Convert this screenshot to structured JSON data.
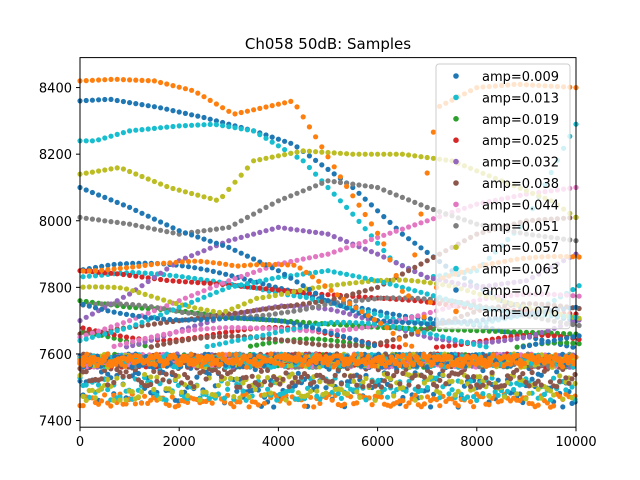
{
  "chart_data": {
    "type": "scatter",
    "title": "Ch058 50dB: Samples",
    "xlabel": "",
    "ylabel": "",
    "xlim": [
      0,
      10000
    ],
    "ylim": [
      7380,
      8490
    ],
    "x_ticks": [
      0,
      2000,
      4000,
      6000,
      8000,
      10000
    ],
    "y_ticks": [
      7400,
      7600,
      7800,
      8000,
      8200,
      8400
    ],
    "legend_position": "top-right",
    "grid": false,
    "series": [
      {
        "name": "amp=0.009",
        "color": "#1f77b4",
        "period": 6500,
        "anchors": [
          [
            0,
            8360
          ],
          [
            600,
            8365
          ],
          [
            1600,
            8340
          ],
          [
            2500,
            8310
          ],
          [
            3500,
            8270
          ],
          [
            4300,
            8230
          ],
          [
            5500,
            8100
          ],
          [
            6500,
            7960
          ],
          [
            7500,
            7850
          ],
          [
            8500,
            7760
          ],
          [
            9300,
            7720
          ],
          [
            10000,
            7700
          ]
        ]
      },
      {
        "name": "amp=0.013",
        "color": "#17becf",
        "period": 6500,
        "anchors": [
          [
            300,
            8240
          ],
          [
            1000,
            8270
          ],
          [
            2000,
            8285
          ],
          [
            2700,
            8290
          ],
          [
            3500,
            8270
          ],
          [
            4500,
            8180
          ],
          [
            5500,
            8020
          ],
          [
            6300,
            7880
          ],
          [
            7000,
            7830
          ],
          [
            8000,
            7850
          ],
          [
            9000,
            8000
          ],
          [
            10000,
            8290
          ]
        ]
      },
      {
        "name": "amp=0.019",
        "color": "#2ca02c",
        "period": 5000,
        "anchors": [
          [
            0,
            7760
          ],
          [
            1000,
            7740
          ],
          [
            2000,
            7730
          ],
          [
            3000,
            7710
          ],
          [
            4000,
            7700
          ],
          [
            5000,
            7690
          ],
          [
            6000,
            7680
          ],
          [
            7000,
            7675
          ],
          [
            8000,
            7670
          ],
          [
            9000,
            7665
          ],
          [
            10000,
            7660
          ]
        ]
      },
      {
        "name": "amp=0.025",
        "color": "#d62728",
        "period": 5200,
        "anchors": [
          [
            0,
            7850
          ],
          [
            800,
            7840
          ],
          [
            1800,
            7820
          ],
          [
            2800,
            7810
          ],
          [
            3800,
            7795
          ],
          [
            4800,
            7780
          ],
          [
            5800,
            7770
          ],
          [
            6800,
            7760
          ],
          [
            7800,
            7740
          ],
          [
            8800,
            7730
          ],
          [
            10000,
            7720
          ]
        ]
      },
      {
        "name": "amp=0.032",
        "color": "#9467bd",
        "period": 7000,
        "anchors": [
          [
            0,
            7700
          ],
          [
            1000,
            7780
          ],
          [
            2000,
            7880
          ],
          [
            3000,
            7940
          ],
          [
            4000,
            7980
          ],
          [
            5000,
            7960
          ],
          [
            6000,
            7900
          ],
          [
            7000,
            7830
          ],
          [
            8000,
            7800
          ],
          [
            9000,
            7820
          ],
          [
            10000,
            7900
          ]
        ]
      },
      {
        "name": "amp=0.038",
        "color": "#8c564b",
        "period": 6000,
        "anchors": [
          [
            0,
            7660
          ],
          [
            1000,
            7680
          ],
          [
            2000,
            7700
          ],
          [
            3000,
            7720
          ],
          [
            4000,
            7740
          ],
          [
            5000,
            7760
          ],
          [
            6000,
            7800
          ],
          [
            7000,
            7880
          ],
          [
            8000,
            7960
          ],
          [
            9000,
            8000
          ],
          [
            10000,
            8010
          ]
        ]
      },
      {
        "name": "amp=0.044",
        "color": "#e377c2",
        "period": 6800,
        "anchors": [
          [
            0,
            7650
          ],
          [
            1000,
            7700
          ],
          [
            2000,
            7760
          ],
          [
            3000,
            7820
          ],
          [
            4000,
            7870
          ],
          [
            5000,
            7900
          ],
          [
            6000,
            7950
          ],
          [
            7000,
            8000
          ],
          [
            8000,
            8050
          ],
          [
            9000,
            8080
          ],
          [
            10000,
            8100
          ]
        ]
      },
      {
        "name": "amp=0.051",
        "color": "#7f7f7f",
        "period": 6500,
        "anchors": [
          [
            0,
            8010
          ],
          [
            1000,
            7990
          ],
          [
            2000,
            7960
          ],
          [
            3000,
            7980
          ],
          [
            4000,
            8060
          ],
          [
            5000,
            8120
          ],
          [
            6000,
            8100
          ],
          [
            7000,
            8040
          ],
          [
            8000,
            7990
          ],
          [
            9000,
            7960
          ],
          [
            10000,
            7940
          ]
        ]
      },
      {
        "name": "amp=0.057",
        "color": "#bcbd22",
        "period": 6500,
        "anchors": [
          [
            0,
            8140
          ],
          [
            800,
            8160
          ],
          [
            1800,
            8100
          ],
          [
            2800,
            8060
          ],
          [
            3500,
            8180
          ],
          [
            4500,
            8210
          ],
          [
            5500,
            8200
          ],
          [
            6500,
            8200
          ],
          [
            7500,
            8180
          ],
          [
            8500,
            8120
          ],
          [
            9500,
            8060
          ],
          [
            10000,
            8010
          ]
        ]
      },
      {
        "name": "amp=0.063",
        "color": "#17becf",
        "period": 7000,
        "anchors": [
          [
            0,
            7640
          ],
          [
            1000,
            7680
          ],
          [
            2000,
            7740
          ],
          [
            3000,
            7800
          ],
          [
            4000,
            7830
          ],
          [
            5000,
            7850
          ],
          [
            6000,
            7820
          ],
          [
            7000,
            7780
          ],
          [
            8000,
            7740
          ],
          [
            9000,
            7720
          ],
          [
            10000,
            7710
          ]
        ]
      },
      {
        "name": "amp=0.07",
        "color": "#1f77b4",
        "period": 6500,
        "anchors": [
          [
            0,
            8100
          ],
          [
            1000,
            8040
          ],
          [
            2000,
            7970
          ],
          [
            3000,
            7920
          ],
          [
            4000,
            7850
          ],
          [
            5000,
            7760
          ],
          [
            6000,
            7700
          ],
          [
            7000,
            7690
          ],
          [
            8000,
            7700
          ],
          [
            9000,
            7720
          ],
          [
            10000,
            7740
          ]
        ]
      },
      {
        "name": "amp=0.076",
        "color": "#ff7f0e",
        "period": 6500,
        "anchors": [
          [
            0,
            8420
          ],
          [
            700,
            8425
          ],
          [
            1500,
            8420
          ],
          [
            2300,
            8390
          ],
          [
            3100,
            8320
          ],
          [
            4300,
            8360
          ],
          [
            5300,
            8120
          ],
          [
            6100,
            7940
          ],
          [
            6600,
            7750
          ],
          [
            7200,
            8340
          ],
          [
            8000,
            8400
          ],
          [
            8800,
            8410
          ],
          [
            10000,
            8400
          ]
        ]
      }
    ],
    "dense_band": {
      "center": 7580,
      "half_width": 20,
      "lower_clusters": [
        {
          "color": "#1f77b4",
          "y_min": 7440,
          "y_max": 7560
        },
        {
          "color": "#ff7f0e",
          "y_min": 7440,
          "y_max": 7480
        },
        {
          "color": "#17becf",
          "y_min": 7460,
          "y_max": 7530
        },
        {
          "color": "#bcbd22",
          "y_min": 7460,
          "y_max": 7540
        },
        {
          "color": "#8c564b",
          "y_min": 7500,
          "y_max": 7560
        }
      ]
    }
  }
}
